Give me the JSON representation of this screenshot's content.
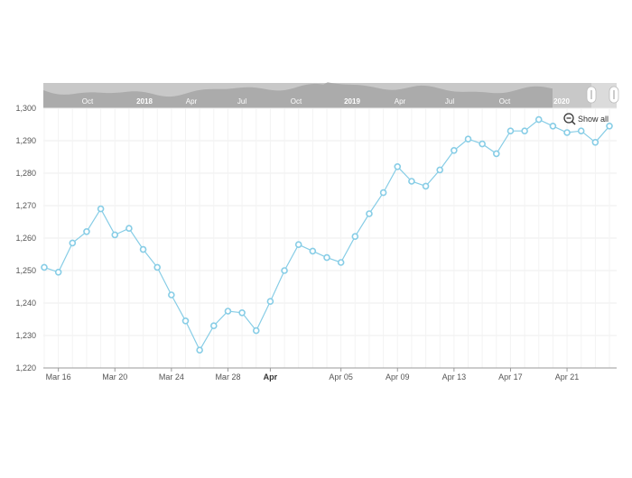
{
  "chart_data": {
    "type": "line",
    "title": "",
    "xlabel": "",
    "ylabel": "",
    "ylim": [
      1220,
      1300
    ],
    "y_ticks": [
      "1,220",
      "1,230",
      "1,240",
      "1,250",
      "1,260",
      "1,270",
      "1,280",
      "1,290",
      "1,300"
    ],
    "x_ticks": [
      {
        "label": "Mar 16",
        "index": 1,
        "bold": false
      },
      {
        "label": "Mar 20",
        "index": 5,
        "bold": false
      },
      {
        "label": "Mar 24",
        "index": 9,
        "bold": false
      },
      {
        "label": "Mar 28",
        "index": 13,
        "bold": false
      },
      {
        "label": "Apr",
        "index": 16,
        "bold": true
      },
      {
        "label": "Apr 05",
        "index": 21,
        "bold": false
      },
      {
        "label": "Apr 09",
        "index": 25,
        "bold": false
      },
      {
        "label": "Apr 13",
        "index": 29,
        "bold": false
      },
      {
        "label": "Apr 17",
        "index": 33,
        "bold": false
      },
      {
        "label": "Apr 21",
        "index": 37,
        "bold": false
      }
    ],
    "grid": true,
    "series": [
      {
        "color": "#87cde6",
        "marker": "circle",
        "values": [
          1251,
          1249.5,
          1258.5,
          1262,
          1269,
          1261,
          1263,
          1256.5,
          1251,
          1242.5,
          1234.5,
          1225.5,
          1233,
          1237.5,
          1237,
          1231.5,
          1240.5,
          1250,
          1258,
          1256,
          1254,
          1252.5,
          1260.5,
          1267.5,
          1274,
          1282,
          1277.5,
          1276,
          1281,
          1287,
          1290.5,
          1289,
          1286,
          1293,
          1293,
          1296.5,
          1294.5,
          1292.5,
          1293,
          1289.5,
          1294.5
        ]
      }
    ],
    "navigator": {
      "labels": [
        {
          "label": "Oct",
          "bold": false
        },
        {
          "label": "2018",
          "bold": true
        },
        {
          "label": "Apr",
          "bold": false
        },
        {
          "label": "Jul",
          "bold": false
        },
        {
          "label": "Oct",
          "bold": false
        },
        {
          "label": "2019",
          "bold": true
        },
        {
          "label": "Apr",
          "bold": false
        },
        {
          "label": "Jul",
          "bold": false
        },
        {
          "label": "Oct",
          "bold": false
        },
        {
          "label": "2020",
          "bold": true
        }
      ],
      "background": "#c8c8c8",
      "silhouette": "#a6a6a6"
    },
    "zoom_button": {
      "label": "Show all",
      "icon": "zoom-out-icon"
    }
  }
}
